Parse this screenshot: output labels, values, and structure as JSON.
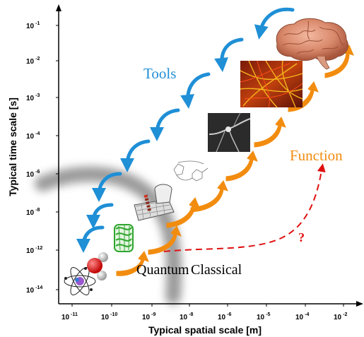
{
  "axes": {
    "x_title": "Typical spatial scale [m]",
    "y_title": "Typical time scale [s]",
    "x_ticks": [
      {
        "base": "10",
        "exp": "-11"
      },
      {
        "base": "10",
        "exp": "-10"
      },
      {
        "base": "10",
        "exp": "-9"
      },
      {
        "base": "10",
        "exp": "-8"
      },
      {
        "base": "10",
        "exp": "-6"
      },
      {
        "base": "10",
        "exp": "-5"
      },
      {
        "base": "10",
        "exp": "-4"
      },
      {
        "base": "10",
        "exp": "-2"
      }
    ],
    "y_ticks": [
      {
        "base": "10",
        "exp": "-1"
      },
      {
        "base": "10",
        "exp": "-2"
      },
      {
        "base": "10",
        "exp": "-3"
      },
      {
        "base": "10",
        "exp": "-4"
      },
      {
        "base": "10",
        "exp": "-6"
      },
      {
        "base": "10",
        "exp": "-8"
      },
      {
        "base": "10",
        "exp": "-12"
      },
      {
        "base": "10",
        "exp": "-14"
      }
    ]
  },
  "labels": {
    "tools": "Tools",
    "function": "Function",
    "quantum": "Quantum",
    "classical": "Classical",
    "question": "?"
  },
  "colors": {
    "tools": "#1f8fd6",
    "function": "#f28c0f",
    "question": "#e01010",
    "boundary": "#8a8a8a"
  },
  "illustrations": [
    "atom-icon",
    "water-molecule-icon",
    "protein-icon",
    "membrane-channel-icon",
    "molecule-diagram-icon",
    "neuron-micrograph",
    "neural-tissue-image",
    "brain-image"
  ]
}
